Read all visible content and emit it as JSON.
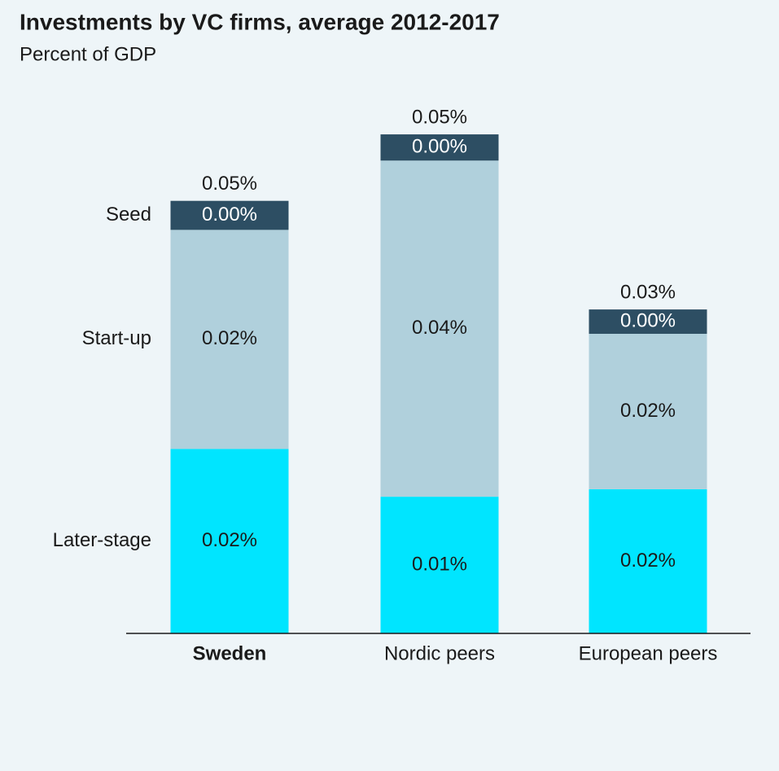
{
  "chart_data": {
    "type": "stacked_bar",
    "title": "Investments by VC firms, average 2012-2017",
    "subtitle": "Percent of GDP",
    "categories": [
      "Sweden",
      "Nordic peers",
      "European peers"
    ],
    "highlight_index": 0,
    "series": [
      {
        "name": "Later-stage",
        "color": "#00e5ff",
        "label_color": "#1a1a1a",
        "values": [
          0.0197,
          0.0146,
          0.0154
        ],
        "value_labels": [
          "0.02%",
          "0.01%",
          "0.02%"
        ]
      },
      {
        "name": "Start-up",
        "color": "#b0d0dc",
        "label_color": "#1a1a1a",
        "values": [
          0.0234,
          0.0359,
          0.0166
        ],
        "value_labels": [
          "0.02%",
          "0.04%",
          "0.02%"
        ]
      },
      {
        "name": "Seed",
        "color": "#2d4e63",
        "label_color": "#ffffff",
        "values": [
          0.0031,
          0.0028,
          0.0026
        ],
        "value_labels": [
          "0.00%",
          "0.00%",
          "0.00%"
        ]
      }
    ],
    "totals": [
      0.0462,
      0.0533,
      0.0346
    ],
    "total_labels": [
      "0.05%",
      "0.05%",
      "0.03%"
    ],
    "ylim": [
      0,
      0.06
    ]
  }
}
